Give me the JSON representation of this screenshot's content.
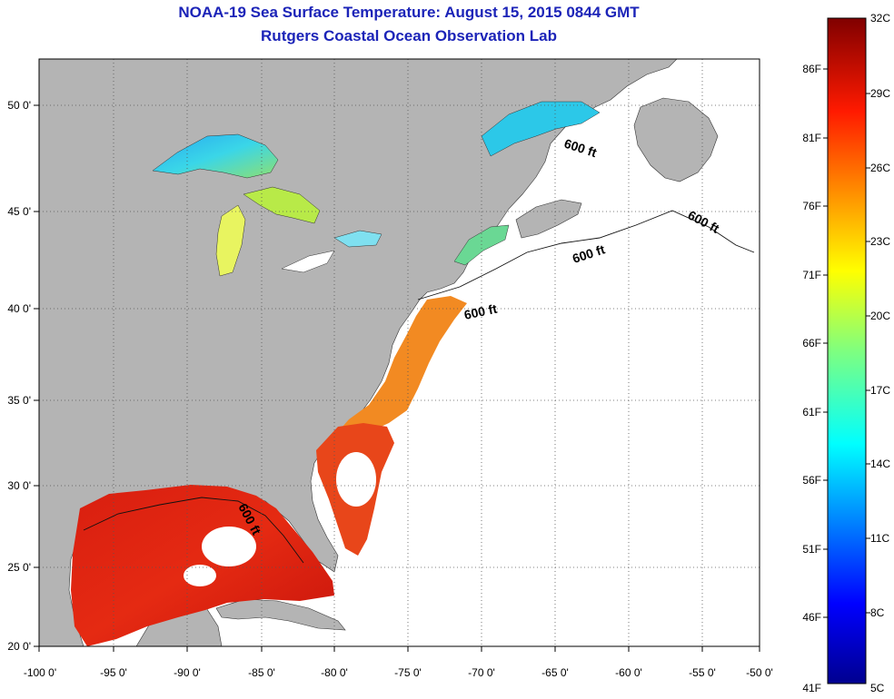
{
  "title": {
    "line1": "NOAA-19 Sea Surface Temperature:  August 15, 2015 0844 GMT",
    "line2": "Rutgers Coastal Ocean Observation Lab"
  },
  "map": {
    "x_ticks": [
      "-100 0'",
      "-95 0'",
      "-90 0'",
      "-85 0'",
      "-80 0'",
      "-75 0'",
      "-70 0'",
      "-65 0'",
      "-60 0'",
      "-55 0'",
      "-50 0'"
    ],
    "y_ticks": [
      "50 0'",
      "45 0'",
      "40 0'",
      "35 0'",
      "30 0'",
      "25 0'",
      "20 0'"
    ],
    "depth_labels": [
      "600 ft",
      "600 ft",
      "600 ft",
      "600 ft",
      "600 ft"
    ]
  },
  "colorbar": {
    "celsius": [
      "32C",
      "29C",
      "26C",
      "23C",
      "20C",
      "17C",
      "14C",
      "11C",
      "8C",
      "5C"
    ],
    "fahrenheit": [
      "86F",
      "81F",
      "76F",
      "71F",
      "66F",
      "61F",
      "56F",
      "51F",
      "46F",
      "41F"
    ]
  },
  "colors": {
    "land": "#b4b4b4",
    "title": "#1c24b8",
    "ocean_no_data": "#ffffff"
  }
}
